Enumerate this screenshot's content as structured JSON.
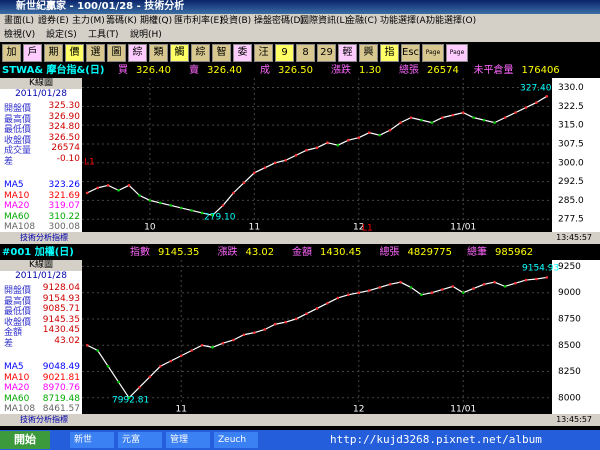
{
  "window": {
    "title": "新世紀贏家 - 100/01/28 - 技術分析"
  },
  "menu": {
    "row1": [
      "畫面(L)",
      "證券(E)",
      "主力(M)",
      "籌碼(K)",
      "期權(Q)",
      "匯市利率(E)",
      "投資(B)",
      "操盤密碼(D)",
      "國際資訊(L)",
      "金融(C)",
      "功能選擇(A)",
      "功能選擇(O)"
    ],
    "row2": [
      "檢視(V)",
      "設定(S)",
      "工具(T)",
      "說明(H)"
    ]
  },
  "toolbar": [
    "加",
    "戶",
    "期",
    "價",
    "選",
    "圖",
    "綜",
    "類",
    "觸",
    "綜",
    "智",
    "委",
    "汪",
    "9",
    "8",
    "29",
    "輕",
    "興",
    "指",
    "Esc",
    "Page Up",
    "Page Down"
  ],
  "panels": [
    {
      "symbol": "STWA& 摩台指&(日)",
      "quote": [
        {
          "label": "買",
          "value": "326.40"
        },
        {
          "label": "賣",
          "value": "326.40"
        },
        {
          "label": "成",
          "value": "326.50"
        },
        {
          "label": "漲跌",
          "value": "1.30"
        },
        {
          "label": "總張",
          "value": "26574"
        },
        {
          "label": "未平倉量",
          "value": "176406"
        }
      ],
      "sidebar": {
        "title": "K線圖",
        "date": "2011/01/28",
        "rows": [
          {
            "label": "開盤價",
            "value": "325.30"
          },
          {
            "label": "最高價",
            "value": "326.90"
          },
          {
            "label": "最低價",
            "value": "324.80"
          },
          {
            "label": "收盤價",
            "value": "326.50"
          },
          {
            "label": "成交量",
            "value": "26574"
          },
          {
            "label": "差",
            "value": "-0.10"
          }
        ],
        "ma": [
          {
            "label": "MA5",
            "value": "323.26"
          },
          {
            "label": "MA10",
            "value": "321.69"
          },
          {
            "label": "MA20",
            "value": "319.07"
          },
          {
            "label": "MA60",
            "value": "310.22"
          },
          {
            "label": "MA108",
            "value": "300.08"
          }
        ]
      },
      "chart": {
        "type": "line",
        "color": "#ffffff",
        "categories": [
          null,
          null,
          null,
          null,
          null,
          null,
          "10",
          null,
          null,
          null,
          null,
          null,
          null,
          null,
          null,
          null,
          "11",
          null,
          null,
          null,
          null,
          null,
          null,
          null,
          null,
          null,
          "12",
          null,
          null,
          null,
          null,
          null,
          null,
          null,
          null,
          null,
          "11/01",
          null,
          null,
          null,
          null,
          null,
          null,
          null,
          null
        ],
        "values": [
          288,
          290,
          291,
          289,
          291,
          287,
          285,
          284,
          283,
          282,
          281,
          280,
          279.1,
          283,
          288,
          292,
          296,
          298,
          300,
          301,
          303,
          305,
          306,
          308,
          307,
          309,
          310,
          312,
          311,
          313,
          316,
          318,
          317,
          316,
          318,
          319,
          320,
          318,
          317,
          316,
          318,
          320,
          322,
          324,
          326.5
        ],
        "ylim": [
          272.4,
          333.8
        ],
        "yticks": [
          {
            "value": 330,
            "label": "330.0"
          },
          {
            "value": 322.5,
            "label": "322.5"
          },
          {
            "value": 315,
            "label": "315.0"
          },
          {
            "value": 307.5,
            "label": "307.5"
          },
          {
            "value": 300,
            "label": "300.0"
          },
          {
            "value": 292.5,
            "label": "292.5"
          },
          {
            "value": 285,
            "label": "285.0"
          },
          {
            "value": 277.5,
            "label": "277.5"
          }
        ],
        "grid": true,
        "annotations": [
          "327.40",
          "279.10",
          "L1",
          "L1"
        ]
      },
      "status": {
        "left": "技術分析指標",
        "time": "13:45:57"
      }
    },
    {
      "symbol": "#001 加權(日)",
      "quote": [
        {
          "label": "指數",
          "value": "9145.35"
        },
        {
          "label": "漲跌",
          "value": "43.02"
        },
        {
          "label": "金額",
          "value": "1430.45"
        },
        {
          "label": "總張",
          "value": "4829775"
        },
        {
          "label": "總筆",
          "value": "985962"
        }
      ],
      "sidebar": {
        "title": "K線圖",
        "date": "2011/01/28",
        "rows": [
          {
            "label": "開盤價",
            "value": "9128.04"
          },
          {
            "label": "最高價",
            "value": "9154.93"
          },
          {
            "label": "最低價",
            "value": "9085.71"
          },
          {
            "label": "收盤價",
            "value": "9145.35"
          },
          {
            "label": "金額",
            "value": "1430.45"
          },
          {
            "label": "差",
            "value": "43.02"
          }
        ],
        "ma": [
          {
            "label": "MA5",
            "value": "9048.49"
          },
          {
            "label": "MA10",
            "value": "9021.81"
          },
          {
            "label": "MA20",
            "value": "8970.76"
          },
          {
            "label": "MA60",
            "value": "8719.48"
          },
          {
            "label": "MA108",
            "value": "8461.57"
          }
        ]
      },
      "chart": {
        "type": "line",
        "color": "#ffffff",
        "categories": [
          null,
          null,
          null,
          null,
          null,
          null,
          null,
          null,
          null,
          "11",
          null,
          null,
          null,
          null,
          null,
          null,
          null,
          null,
          null,
          null,
          null,
          null,
          null,
          null,
          null,
          null,
          "12",
          null,
          null,
          null,
          null,
          null,
          null,
          null,
          null,
          null,
          "11/01",
          null,
          null,
          null,
          null,
          null,
          null,
          null,
          null
        ],
        "values": [
          8500,
          8450,
          8300,
          8150,
          8000,
          8100,
          8200,
          8300,
          8350,
          8400,
          8450,
          8500,
          8480,
          8520,
          8550,
          8600,
          8620,
          8650,
          8700,
          8720,
          8750,
          8800,
          8850,
          8900,
          8950,
          8980,
          9000,
          9020,
          9050,
          9080,
          9100,
          9050,
          8980,
          9000,
          9030,
          9060,
          9000,
          9040,
          9080,
          9100,
          9060,
          9090,
          9120,
          9130,
          9145.35
        ],
        "ylim": [
          7846,
          9311
        ],
        "yticks": [
          9250,
          9000,
          8750,
          8500,
          8250,
          8000
        ],
        "grid": true,
        "annotations": [
          "9154.93",
          "7992.81"
        ]
      },
      "status": {
        "left": "技術分析指標",
        "time": "13:45:57"
      }
    }
  ],
  "taskbar": {
    "start": "開始",
    "items": [
      "新世",
      "元富",
      "管理",
      "Zeuch"
    ],
    "watermark": "http://kujd3268.pixnet.net/album"
  }
}
